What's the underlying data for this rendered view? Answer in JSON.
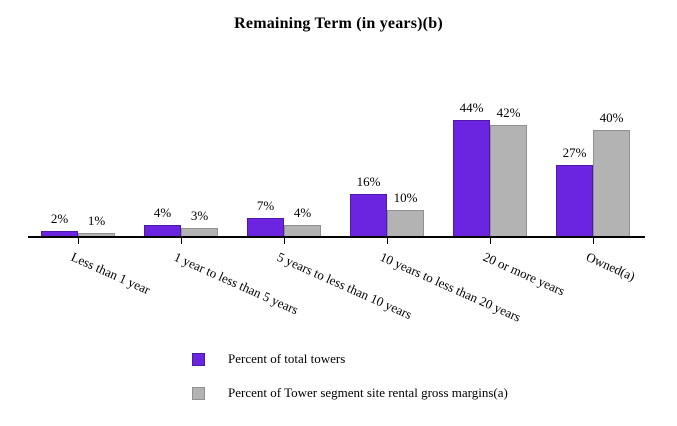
{
  "title": "Remaining Term (in years)(b)",
  "colors": {
    "purple_fill": "#6B24E0",
    "purple_border": "#4E18A8",
    "gray_fill": "#B3B3B3",
    "gray_border": "#919191",
    "axis": "#000000",
    "background": "#FFFFFF"
  },
  "legend": {
    "items": [
      {
        "label": "Percent of total towers",
        "color_key": "purple"
      },
      {
        "label": "Percent of Tower segment site rental gross margins(a)",
        "color_key": "gray"
      }
    ]
  },
  "chart_data": {
    "type": "bar",
    "title": "Remaining Term (in years)(b)",
    "categories": [
      "Less than 1 year",
      "1 year to less than 5 years",
      "5 years to less than 10 years",
      "10 years to less than 20 years",
      "20 or more years",
      "Owned(a)"
    ],
    "series": [
      {
        "name": "Percent of total towers",
        "values": [
          2,
          4,
          7,
          16,
          44,
          27
        ],
        "labels": [
          "2%",
          "4%",
          "7%",
          "16%",
          "44%",
          "27%"
        ]
      },
      {
        "name": "Percent of Tower segment site rental gross margins(a)",
        "values": [
          1,
          3,
          4,
          10,
          42,
          40
        ],
        "labels": [
          "1%",
          "3%",
          "4%",
          "10%",
          "42%",
          "40%"
        ]
      }
    ],
    "ylim": [
      0,
      50
    ],
    "value_suffix": "%",
    "xlabel": "",
    "ylabel": "",
    "grid": false,
    "legend_position": "bottom",
    "category_label_rotation_deg": 24
  }
}
